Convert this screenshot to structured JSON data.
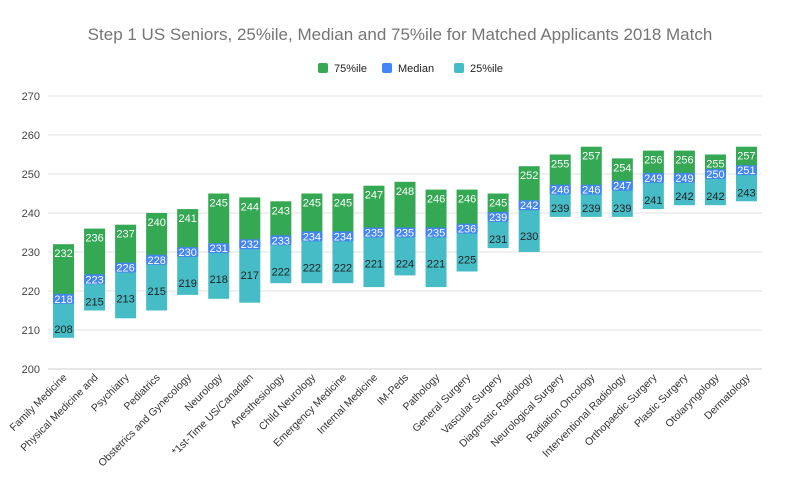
{
  "chart_data": {
    "type": "bar",
    "title": "Step 1 US Seniors, 25%ile, Median and 75%ile for Matched Applicants 2018 Match",
    "legend_position": "top",
    "grid": true,
    "ylim": [
      200,
      270
    ],
    "yticks": [
      200,
      210,
      220,
      230,
      240,
      250,
      260,
      270
    ],
    "categories": [
      "Family Medicine",
      "Physical Medicine and",
      "Psychiatry",
      "Pediatrics",
      "Obstetrics and Gynecology",
      "Neurology",
      "*1st-Time US/Canadian",
      "Anesthesiology",
      "Child Neurology",
      "Emergency Medicine",
      "Internal Medicine",
      "IM-Peds",
      "Pathology",
      "General Surgery",
      "Vascular Surgery",
      "Diagnostic Radiology",
      "Neurological Surgery",
      "Radiation Oncology",
      "Interventional Radiology",
      "Orthopaedic Surgery",
      "Plastic Surgery",
      "Otolaryngology",
      "Dermatology"
    ],
    "series": [
      {
        "name": "75%ile",
        "color": "#34a853",
        "values": [
          232,
          236,
          237,
          240,
          241,
          245,
          244,
          243,
          245,
          245,
          247,
          248,
          246,
          246,
          245,
          252,
          255,
          257,
          254,
          256,
          256,
          255,
          257
        ]
      },
      {
        "name": "Median",
        "color": "#4285f4",
        "values": [
          218,
          223,
          226,
          228,
          230,
          231,
          232,
          233,
          234,
          234,
          235,
          235,
          235,
          236,
          239,
          242,
          246,
          246,
          247,
          249,
          249,
          250,
          251
        ]
      },
      {
        "name": "25%ile",
        "color": "#46bdc6",
        "values": [
          208,
          215,
          213,
          215,
          219,
          218,
          217,
          222,
          222,
          222,
          221,
          224,
          221,
          225,
          231,
          230,
          239,
          239,
          239,
          241,
          242,
          242,
          243
        ]
      }
    ]
  }
}
